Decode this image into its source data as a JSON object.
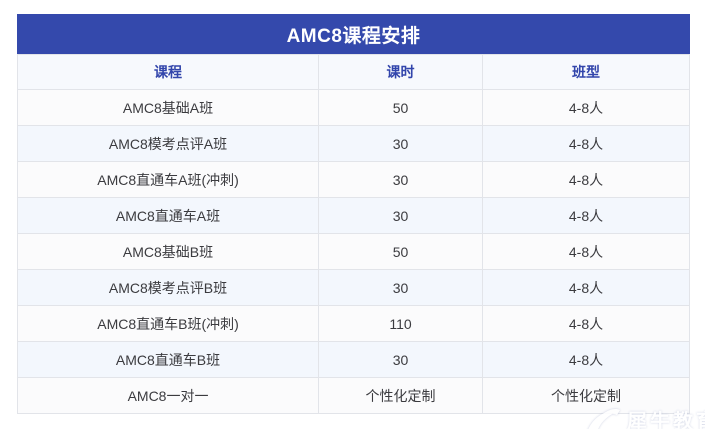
{
  "chart_data": {
    "type": "table",
    "title": "AMC8课程安排",
    "columns": [
      "课程",
      "课时",
      "班型"
    ],
    "rows": [
      [
        "AMC8基础A班",
        "50",
        "4-8人"
      ],
      [
        "AMC8模考点评A班",
        "30",
        "4-8人"
      ],
      [
        "AMC8直通车A班(冲刺)",
        "30",
        "4-8人"
      ],
      [
        "AMC8直通车A班",
        "30",
        "4-8人"
      ],
      [
        "AMC8基础B班",
        "50",
        "4-8人"
      ],
      [
        "AMC8模考点评B班",
        "30",
        "4-8人"
      ],
      [
        "AMC8直通车B班(冲刺)",
        "110",
        "4-8人"
      ],
      [
        "AMC8直通车B班",
        "30",
        "4-8人"
      ],
      [
        "AMC8一对一",
        "个性化定制",
        "个性化定制"
      ]
    ]
  },
  "watermark": {
    "text": "犀牛教育"
  },
  "colors": {
    "title_bar_bg": "#3449ac",
    "title_text": "#ffffff",
    "column_header_text": "#3245ab",
    "column_header_bg": "#f7f9fd",
    "row_odd_bg": "#fbfbfc",
    "row_even_bg": "#f3f7fd",
    "cell_border": "#e2e4e9",
    "cell_text": "#3b3b3f",
    "watermark_color": "#ffffff"
  }
}
